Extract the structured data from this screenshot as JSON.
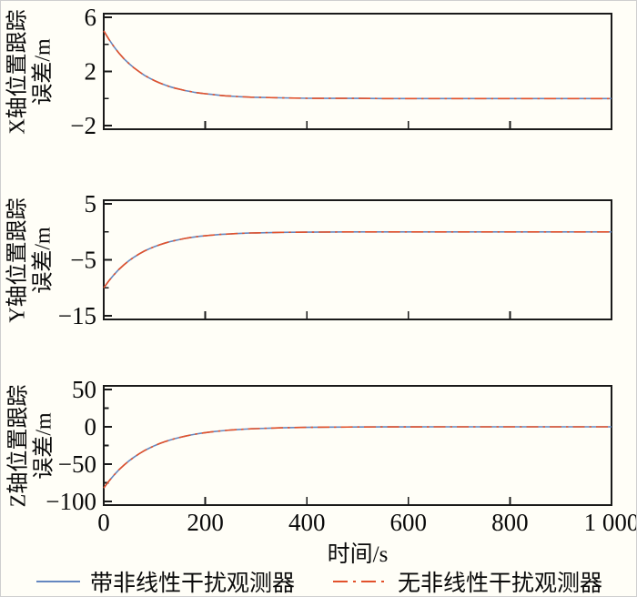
{
  "figure": {
    "background": "#fffef7",
    "axis_color": "#1a1a1a",
    "text_color": "#0a0a0a"
  },
  "xaxis": {
    "title": "时间/s",
    "range": [
      0,
      1000
    ],
    "ticks": [
      0,
      200,
      400,
      600,
      800,
      1000
    ],
    "tick_labels": [
      "0",
      "200",
      "400",
      "600",
      "800",
      "1 000"
    ]
  },
  "legend": {
    "items": [
      {
        "label": "带非线性干扰观测器",
        "color": "#6487c0",
        "style": "solid"
      },
      {
        "label": "无非线性干扰观测器",
        "color": "#e2512b",
        "style": "dash-dot"
      }
    ]
  },
  "chart_data": [
    {
      "type": "line",
      "id": "x-axis-position-error",
      "ylabel": "X轴位置跟踪误差/m",
      "ylabel_lines": [
        "X轴位置跟踪",
        "误差/m"
      ],
      "xlabel": "时间/s",
      "ylim": [
        -2,
        6
      ],
      "yticks_major": [
        6,
        2,
        -2
      ],
      "yticks_minor": [
        4,
        0
      ],
      "grid": false,
      "x": [
        0,
        10,
        20,
        30,
        40,
        50,
        60,
        70,
        80,
        90,
        100,
        110,
        120,
        130,
        140,
        150,
        160,
        170,
        180,
        190,
        200,
        210,
        220,
        230,
        240,
        250,
        260,
        270,
        280,
        290,
        300,
        350,
        400,
        450,
        500,
        550,
        600,
        650,
        700,
        750,
        800,
        850,
        900,
        950,
        1000
      ],
      "series": [
        {
          "name": "带非线性干扰观测器",
          "color": "#6487c0",
          "style": "solid",
          "values": [
            5,
            4.38,
            3.83,
            3.35,
            2.93,
            2.57,
            2.25,
            1.97,
            1.72,
            1.51,
            1.32,
            1.15,
            1.01,
            0.88,
            0.77,
            0.68,
            0.59,
            0.52,
            0.45,
            0.4,
            0.35,
            0.31,
            0.27,
            0.23,
            0.2,
            0.18,
            0.15,
            0.13,
            0.12,
            0.1,
            0.09,
            0.05,
            0.02,
            0.01,
            0.01,
            0,
            0,
            0,
            0,
            0,
            0,
            0,
            0,
            0,
            0
          ]
        },
        {
          "name": "无非线性干扰观测器",
          "color": "#e2512b",
          "style": "dash-dot",
          "values": [
            5,
            4.38,
            3.83,
            3.35,
            2.93,
            2.57,
            2.25,
            1.97,
            1.72,
            1.51,
            1.32,
            1.15,
            1.01,
            0.88,
            0.77,
            0.68,
            0.59,
            0.52,
            0.45,
            0.4,
            0.35,
            0.31,
            0.27,
            0.23,
            0.2,
            0.18,
            0.15,
            0.13,
            0.12,
            0.1,
            0.09,
            0.05,
            0.02,
            0.01,
            0.01,
            0,
            0,
            0,
            0,
            0,
            0,
            0,
            0,
            0,
            0
          ]
        }
      ]
    },
    {
      "type": "line",
      "id": "y-axis-position-error",
      "ylabel": "Y轴位置跟踪误差/m",
      "ylabel_lines": [
        "Y轴位置跟踪",
        "误差/m"
      ],
      "xlabel": "时间/s",
      "ylim": [
        -15,
        5
      ],
      "yticks_major": [
        5,
        -5,
        -15
      ],
      "yticks_minor": [
        0,
        -10
      ],
      "grid": false,
      "x": [
        0,
        10,
        20,
        30,
        40,
        50,
        60,
        70,
        80,
        90,
        100,
        110,
        120,
        130,
        140,
        150,
        160,
        170,
        180,
        190,
        200,
        210,
        220,
        230,
        240,
        250,
        260,
        270,
        280,
        290,
        300,
        350,
        400,
        450,
        500,
        550,
        600,
        650,
        700,
        750,
        800,
        850,
        900,
        950,
        1000
      ],
      "series": [
        {
          "name": "带非线性干扰观测器",
          "color": "#6487c0",
          "style": "solid",
          "values": [
            -10,
            -8.75,
            -7.66,
            -6.7,
            -5.87,
            -5.13,
            -4.49,
            -3.93,
            -3.44,
            -3.01,
            -2.64,
            -2.31,
            -2.02,
            -1.77,
            -1.55,
            -1.35,
            -1.18,
            -1.04,
            -0.91,
            -0.79,
            -0.7,
            -0.61,
            -0.54,
            -0.47,
            -0.41,
            -0.36,
            -0.31,
            -0.27,
            -0.24,
            -0.21,
            -0.18,
            -0.09,
            -0.05,
            -0.02,
            -0.01,
            -0.01,
            0,
            0,
            0,
            0,
            0,
            0,
            0,
            0,
            0
          ]
        },
        {
          "name": "无非线性干扰观测器",
          "color": "#e2512b",
          "style": "dash-dot",
          "values": [
            -10,
            -8.75,
            -7.66,
            -6.7,
            -5.87,
            -5.13,
            -4.49,
            -3.93,
            -3.44,
            -3.01,
            -2.64,
            -2.31,
            -2.02,
            -1.77,
            -1.55,
            -1.35,
            -1.18,
            -1.04,
            -0.91,
            -0.79,
            -0.7,
            -0.61,
            -0.54,
            -0.47,
            -0.41,
            -0.36,
            -0.31,
            -0.27,
            -0.24,
            -0.21,
            -0.18,
            -0.09,
            -0.05,
            -0.02,
            -0.01,
            -0.01,
            0,
            0,
            0,
            0,
            0,
            0,
            0,
            0,
            0
          ]
        }
      ]
    },
    {
      "type": "line",
      "id": "z-axis-position-error",
      "ylabel": "Z轴位置跟踪误差/m",
      "ylabel_lines": [
        "Z轴位置跟踪",
        "误差/m"
      ],
      "xlabel": "时间/s",
      "ylim": [
        -100,
        50
      ],
      "yticks_major": [
        50,
        0,
        -50,
        -100
      ],
      "yticks_minor": [
        25,
        -25,
        -75
      ],
      "grid": false,
      "x": [
        0,
        10,
        20,
        30,
        40,
        50,
        60,
        70,
        80,
        90,
        100,
        110,
        120,
        130,
        140,
        150,
        160,
        170,
        180,
        190,
        200,
        210,
        220,
        230,
        240,
        250,
        260,
        270,
        280,
        290,
        300,
        350,
        400,
        450,
        500,
        550,
        600,
        650,
        700,
        750,
        800,
        850,
        900,
        950,
        1000
      ],
      "series": [
        {
          "name": "带非线性干扰观测器",
          "color": "#6487c0",
          "style": "solid",
          "values": [
            -82,
            -72.9,
            -64.8,
            -57.6,
            -51.2,
            -45.5,
            -40.5,
            -36,
            -32,
            -28.5,
            -25.3,
            -22.5,
            -20,
            -17.8,
            -15.8,
            -14.1,
            -12.5,
            -11.1,
            -9.9,
            -8.8,
            -7.8,
            -7,
            -6.2,
            -5.5,
            -4.9,
            -4.3,
            -3.9,
            -3.4,
            -3.1,
            -2.7,
            -2.4,
            -1.3,
            -0.7,
            -0.4,
            -0.2,
            -0.1,
            -0.1,
            0,
            0,
            0,
            0,
            0,
            0,
            0,
            0
          ]
        },
        {
          "name": "无非线性干扰观测器",
          "color": "#e2512b",
          "style": "dash-dot",
          "values": [
            -82,
            -72.9,
            -64.8,
            -57.6,
            -51.2,
            -45.5,
            -40.5,
            -36,
            -32,
            -28.5,
            -25.3,
            -22.5,
            -20,
            -17.8,
            -15.8,
            -14.1,
            -12.5,
            -11.1,
            -9.9,
            -8.8,
            -7.8,
            -7,
            -6.2,
            -5.5,
            -4.9,
            -4.3,
            -3.9,
            -3.4,
            -3.1,
            -2.7,
            -2.4,
            -1.3,
            -0.7,
            -0.4,
            -0.2,
            -0.1,
            -0.1,
            0,
            0,
            0,
            0,
            0,
            0,
            0,
            0
          ]
        }
      ]
    }
  ]
}
